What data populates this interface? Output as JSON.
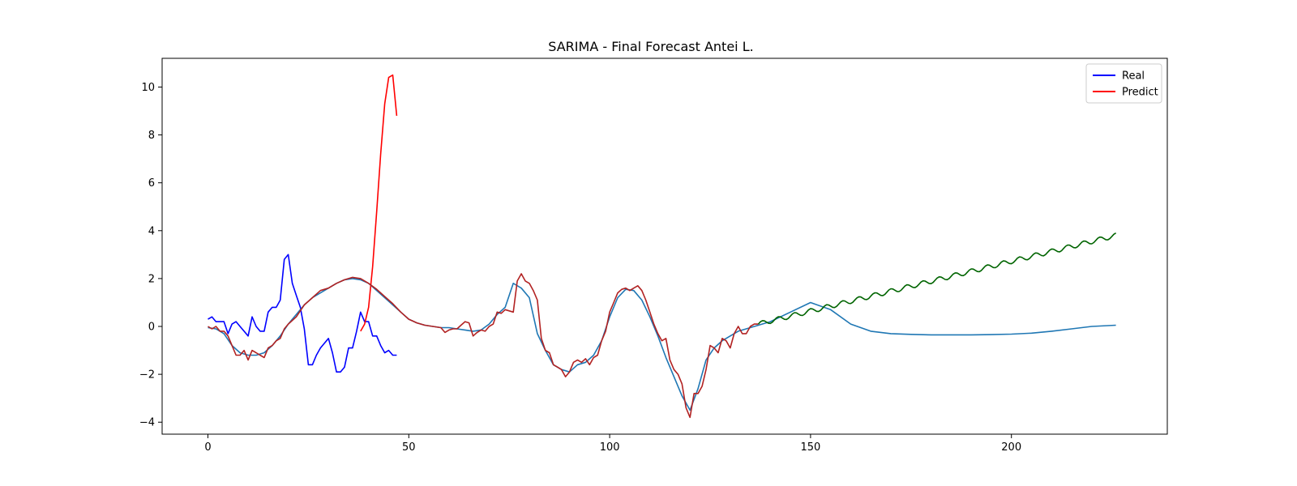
{
  "chart_data": {
    "type": "line",
    "title": "SARIMA - Final Forecast Antei L.",
    "xlim": [
      -11.4,
      238.8
    ],
    "ylim": [
      -4.5,
      11.2
    ],
    "xticks": [
      0,
      50,
      100,
      150,
      200
    ],
    "yticks": [
      -4,
      -2,
      0,
      2,
      4,
      6,
      8,
      10
    ],
    "legend": {
      "placement": "top-right",
      "entries": [
        "Real",
        "Predict"
      ]
    },
    "series": [
      {
        "name": "Real",
        "color": "#0000ff",
        "x": [
          0,
          1,
          2,
          3,
          4,
          5,
          6,
          7,
          8,
          9,
          10,
          11,
          12,
          13,
          14,
          15,
          16,
          17,
          18,
          19,
          20,
          21,
          22,
          23,
          24,
          25,
          26,
          27,
          28,
          29,
          30,
          31,
          32,
          33,
          34,
          35,
          36,
          37,
          38,
          39,
          40,
          41,
          42,
          43,
          44,
          45,
          46,
          47
        ],
        "y": [
          0.3,
          0.4,
          0.2,
          0.2,
          0.2,
          -0.3,
          0.1,
          0.2,
          0.0,
          -0.2,
          -0.4,
          0.4,
          0.0,
          -0.2,
          -0.2,
          0.6,
          0.8,
          0.8,
          1.1,
          2.8,
          3.0,
          1.8,
          1.3,
          0.8,
          -0.1,
          -1.6,
          -1.6,
          -1.2,
          -0.9,
          -0.7,
          -0.5,
          -1.1,
          -1.9,
          -1.9,
          -1.7,
          -0.9,
          -0.9,
          -0.2,
          0.6,
          0.2,
          0.2,
          -0.4,
          -0.4,
          -0.8,
          -1.1,
          -1.0,
          -1.2,
          -1.2
        ]
      },
      {
        "name": "Predict",
        "color": "#ff0000",
        "x": [
          38,
          39,
          40,
          41,
          42,
          43,
          44,
          45,
          46,
          47
        ],
        "y": [
          -0.2,
          0.1,
          0.8,
          2.5,
          4.8,
          7.2,
          9.3,
          10.4,
          10.5,
          8.8
        ]
      },
      {
        "name": "",
        "color": "#1f77b4",
        "x": [
          0,
          2,
          4,
          6,
          8,
          10,
          12,
          14,
          16,
          18,
          20,
          22,
          24,
          26,
          28,
          30,
          32,
          34,
          36,
          38,
          40,
          42,
          44,
          46,
          48,
          50,
          52,
          54,
          56,
          58,
          60,
          62,
          64,
          66,
          68,
          70,
          72,
          74,
          76,
          78,
          80,
          82,
          84,
          86,
          88,
          90,
          92,
          94,
          96,
          98,
          100,
          102,
          104,
          106,
          108,
          110,
          112,
          114,
          116,
          118,
          120,
          122,
          124,
          126,
          128,
          130,
          132,
          134,
          136,
          140,
          145,
          150,
          155,
          160,
          165,
          170,
          175,
          180,
          185,
          190,
          195,
          200,
          205,
          210,
          215,
          220,
          226
        ],
        "y": [
          -0.05,
          -0.1,
          -0.3,
          -0.8,
          -1.1,
          -1.2,
          -1.2,
          -1.1,
          -0.8,
          -0.4,
          0.1,
          0.5,
          0.9,
          1.2,
          1.4,
          1.6,
          1.8,
          1.95,
          2.0,
          1.95,
          1.8,
          1.5,
          1.2,
          0.9,
          0.6,
          0.3,
          0.15,
          0.05,
          0.0,
          -0.05,
          -0.05,
          -0.1,
          -0.15,
          -0.2,
          -0.15,
          0.1,
          0.5,
          0.8,
          1.8,
          1.6,
          1.2,
          -0.3,
          -1.0,
          -1.6,
          -1.8,
          -1.9,
          -1.6,
          -1.5,
          -1.2,
          -0.6,
          0.4,
          1.2,
          1.55,
          1.5,
          1.1,
          0.4,
          -0.4,
          -1.3,
          -2.1,
          -2.9,
          -3.5,
          -2.6,
          -1.4,
          -0.9,
          -0.6,
          -0.4,
          -0.2,
          -0.1,
          0.0,
          0.2,
          0.6,
          1.0,
          0.7,
          0.1,
          -0.2,
          -0.3,
          -0.33,
          -0.35,
          -0.35,
          -0.35,
          -0.34,
          -0.32,
          -0.28,
          -0.2,
          -0.1,
          0.0,
          0.05
        ]
      },
      {
        "name": "",
        "color": "#b22222",
        "x": [
          0,
          1,
          2,
          3,
          4,
          5,
          6,
          7,
          8,
          9,
          10,
          11,
          12,
          13,
          14,
          15,
          16,
          17,
          18,
          19,
          20,
          22,
          24,
          26,
          28,
          30,
          32,
          34,
          36,
          38,
          40,
          42,
          44,
          46,
          48,
          50,
          52,
          54,
          56,
          58,
          59,
          60,
          61,
          62,
          63,
          64,
          65,
          66,
          67,
          68,
          69,
          70,
          71,
          72,
          73,
          74,
          75,
          76,
          77,
          78,
          79,
          80,
          81,
          82,
          83,
          84,
          85,
          86,
          87,
          88,
          89,
          90,
          91,
          92,
          93,
          94,
          95,
          96,
          97,
          98,
          99,
          100,
          101,
          102,
          103,
          104,
          105,
          106,
          107,
          108,
          109,
          110,
          111,
          112,
          113,
          114,
          115,
          116,
          117,
          118,
          119,
          120,
          121,
          122,
          123,
          124,
          125,
          126,
          127,
          128,
          129,
          130,
          131,
          132,
          133,
          134,
          135,
          136,
          137
        ],
        "y": [
          0.0,
          -0.1,
          0.0,
          -0.2,
          -0.2,
          -0.4,
          -0.8,
          -1.2,
          -1.2,
          -1.0,
          -1.4,
          -1.0,
          -1.1,
          -1.2,
          -1.3,
          -0.9,
          -0.8,
          -0.6,
          -0.5,
          -0.1,
          0.1,
          0.4,
          0.9,
          1.2,
          1.5,
          1.6,
          1.8,
          1.95,
          2.05,
          2.0,
          1.8,
          1.55,
          1.25,
          0.95,
          0.6,
          0.3,
          0.15,
          0.05,
          0.0,
          -0.05,
          -0.25,
          -0.15,
          -0.1,
          -0.1,
          0.05,
          0.2,
          0.15,
          -0.4,
          -0.25,
          -0.15,
          -0.2,
          0.0,
          0.1,
          0.6,
          0.55,
          0.7,
          0.65,
          0.6,
          1.9,
          2.2,
          1.9,
          1.8,
          1.5,
          1.1,
          -0.5,
          -1.0,
          -1.1,
          -1.6,
          -1.7,
          -1.8,
          -2.1,
          -1.9,
          -1.5,
          -1.4,
          -1.5,
          -1.35,
          -1.6,
          -1.3,
          -1.2,
          -0.6,
          -0.2,
          0.6,
          1.0,
          1.4,
          1.55,
          1.6,
          1.5,
          1.6,
          1.7,
          1.5,
          1.1,
          0.6,
          0.1,
          -0.3,
          -0.6,
          -0.5,
          -1.4,
          -1.8,
          -2.0,
          -2.4,
          -3.4,
          -3.8,
          -2.8,
          -2.8,
          -2.5,
          -1.8,
          -0.8,
          -0.9,
          -1.1,
          -0.5,
          -0.6,
          -0.9,
          -0.3,
          0.0,
          -0.3,
          -0.3,
          0.0,
          0.1,
          0.1
        ]
      },
      {
        "name": "",
        "color": "#006400",
        "x": [
          137,
          226
        ],
        "y": [
          0.1,
          3.8
        ]
      }
    ]
  }
}
